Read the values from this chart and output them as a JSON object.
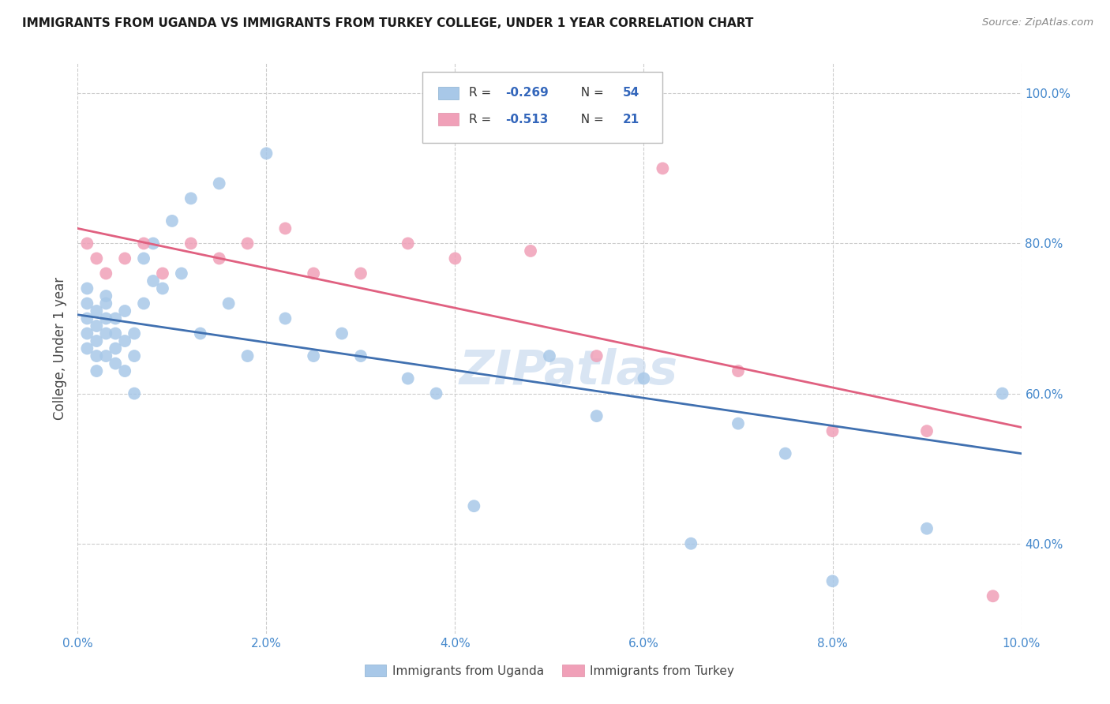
{
  "title": "IMMIGRANTS FROM UGANDA VS IMMIGRANTS FROM TURKEY COLLEGE, UNDER 1 YEAR CORRELATION CHART",
  "source": "Source: ZipAtlas.com",
  "ylabel": "College, Under 1 year",
  "legend_label1": "Immigrants from Uganda",
  "legend_label2": "Immigrants from Turkey",
  "R1": "-0.269",
  "N1": "54",
  "R2": "-0.513",
  "N2": "21",
  "xlim": [
    0.0,
    0.1
  ],
  "ylim": [
    0.28,
    1.04
  ],
  "xtick_vals": [
    0.0,
    0.02,
    0.04,
    0.06,
    0.08,
    0.1
  ],
  "ytick_vals": [
    0.4,
    0.6,
    0.8,
    1.0
  ],
  "ytick_labels": [
    "40.0%",
    "60.0%",
    "80.0%",
    "100.0%"
  ],
  "xtick_labels": [
    "0.0%",
    "2.0%",
    "4.0%",
    "6.0%",
    "8.0%",
    "10.0%"
  ],
  "color_uganda": "#a8c8e8",
  "color_turkey": "#f0a0b8",
  "line_color_uganda": "#4070b0",
  "line_color_turkey": "#e06080",
  "watermark": "ZIPatlas",
  "uganda_x": [
    0.001,
    0.001,
    0.001,
    0.001,
    0.001,
    0.002,
    0.002,
    0.002,
    0.002,
    0.002,
    0.003,
    0.003,
    0.003,
    0.003,
    0.003,
    0.004,
    0.004,
    0.004,
    0.004,
    0.005,
    0.005,
    0.005,
    0.006,
    0.006,
    0.006,
    0.007,
    0.007,
    0.008,
    0.008,
    0.009,
    0.01,
    0.011,
    0.012,
    0.013,
    0.015,
    0.016,
    0.018,
    0.02,
    0.022,
    0.025,
    0.028,
    0.03,
    0.035,
    0.038,
    0.042,
    0.05,
    0.055,
    0.06,
    0.065,
    0.07,
    0.075,
    0.08,
    0.09,
    0.098
  ],
  "uganda_y": [
    0.7,
    0.68,
    0.66,
    0.72,
    0.74,
    0.67,
    0.65,
    0.69,
    0.71,
    0.63,
    0.73,
    0.68,
    0.7,
    0.65,
    0.72,
    0.66,
    0.64,
    0.68,
    0.7,
    0.63,
    0.67,
    0.71,
    0.6,
    0.65,
    0.68,
    0.72,
    0.78,
    0.75,
    0.8,
    0.74,
    0.83,
    0.76,
    0.86,
    0.68,
    0.88,
    0.72,
    0.65,
    0.92,
    0.7,
    0.65,
    0.68,
    0.65,
    0.62,
    0.6,
    0.45,
    0.65,
    0.57,
    0.62,
    0.4,
    0.56,
    0.52,
    0.35,
    0.42,
    0.6
  ],
  "turkey_x": [
    0.001,
    0.002,
    0.003,
    0.005,
    0.007,
    0.009,
    0.012,
    0.015,
    0.018,
    0.022,
    0.025,
    0.03,
    0.035,
    0.04,
    0.048,
    0.055,
    0.062,
    0.07,
    0.08,
    0.09,
    0.097
  ],
  "turkey_y": [
    0.8,
    0.78,
    0.76,
    0.78,
    0.8,
    0.76,
    0.8,
    0.78,
    0.8,
    0.82,
    0.76,
    0.76,
    0.8,
    0.78,
    0.79,
    0.65,
    0.9,
    0.63,
    0.55,
    0.55,
    0.33
  ],
  "uganda_line_x0": 0.0,
  "uganda_line_y0": 0.705,
  "uganda_line_x1": 0.1,
  "uganda_line_y1": 0.52,
  "turkey_line_x0": 0.0,
  "turkey_line_y0": 0.82,
  "turkey_line_x1": 0.1,
  "turkey_line_y1": 0.555
}
